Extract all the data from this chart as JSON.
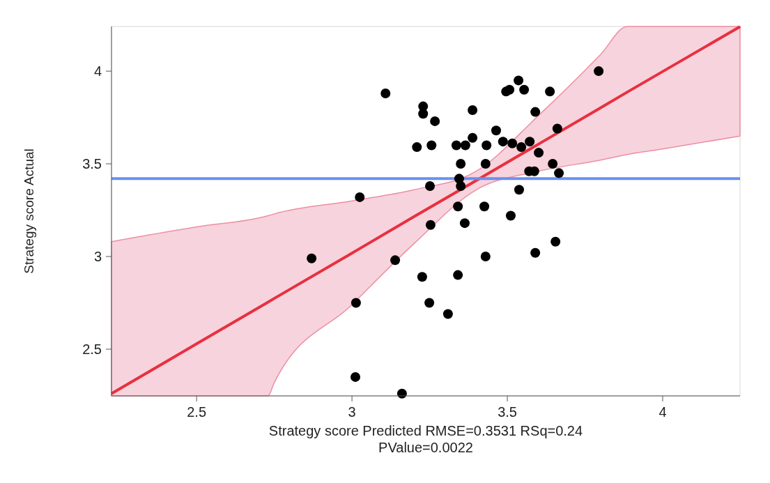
{
  "chart_data": {
    "type": "scatter",
    "xlabel": "Strategy score Predicted RMSE=0.3531 RSq=0.24 PValue=0.0022",
    "ylabel": "Strategy score Actual",
    "xlim": [
      2.226,
      4.249
    ],
    "ylim": [
      2.248,
      4.241
    ],
    "xticks": [
      2.5,
      3,
      3.5,
      4
    ],
    "yticks": [
      2.5,
      3,
      3.5,
      4
    ],
    "grid": false,
    "ref_lines": [
      {
        "axis": "y",
        "value": 3.42,
        "color": "#6a8ff0"
      }
    ],
    "series": [
      {
        "type": "line",
        "color": "#e8303f",
        "line_style": "solid",
        "x": [
          2.226,
          2.5,
          2.73,
          2.75,
          3.0,
          3.2,
          3.4,
          3.6,
          3.8,
          3.886,
          4.0,
          4.249
        ],
        "values": [
          2.26,
          2.529,
          2.754,
          2.774,
          3.018,
          3.215,
          3.41,
          3.606,
          3.802,
          3.887,
          3.998,
          4.24
        ],
        "lower": [
          2.248,
          2.248,
          2.248,
          2.32,
          2.74,
          3.07,
          3.36,
          3.46,
          3.52,
          3.55,
          3.58,
          3.65
        ],
        "upper": [
          3.08,
          3.16,
          3.22,
          3.23,
          3.3,
          3.36,
          3.46,
          3.76,
          4.09,
          4.241,
          4.241,
          4.241
        ]
      },
      {
        "type": "scatter",
        "color": "#000000",
        "marker": "circle",
        "x": [
          3.108,
          3.229,
          3.229,
          3.267,
          3.209,
          3.256,
          3.388,
          3.388,
          3.336,
          3.365,
          3.433,
          3.464,
          3.35,
          3.43,
          3.496,
          3.507,
          3.536,
          3.554,
          3.637,
          3.59,
          3.486,
          3.516,
          3.545,
          3.572,
          3.601,
          3.661,
          3.794,
          3.587,
          3.57,
          3.646,
          3.666,
          3.251,
          3.345,
          3.35,
          3.538,
          3.341,
          3.426,
          3.253,
          3.363,
          3.511,
          3.025,
          2.87,
          3.139,
          3.43,
          3.59,
          3.655,
          3.341,
          3.226,
          3.249,
          3.013,
          3.309,
          3.011,
          3.161
        ],
        "values": [
          3.88,
          3.81,
          3.77,
          3.73,
          3.59,
          3.6,
          3.79,
          3.64,
          3.6,
          3.6,
          3.6,
          3.68,
          3.5,
          3.5,
          3.89,
          3.9,
          3.95,
          3.9,
          3.89,
          3.78,
          3.62,
          3.61,
          3.59,
          3.62,
          3.56,
          3.69,
          4.0,
          3.46,
          3.46,
          3.5,
          3.45,
          3.38,
          3.42,
          3.38,
          3.36,
          3.27,
          3.27,
          3.17,
          3.18,
          3.22,
          3.32,
          2.99,
          2.98,
          3.0,
          3.02,
          3.08,
          2.9,
          2.89,
          2.75,
          2.75,
          2.69,
          2.35,
          2.26
        ]
      }
    ]
  }
}
